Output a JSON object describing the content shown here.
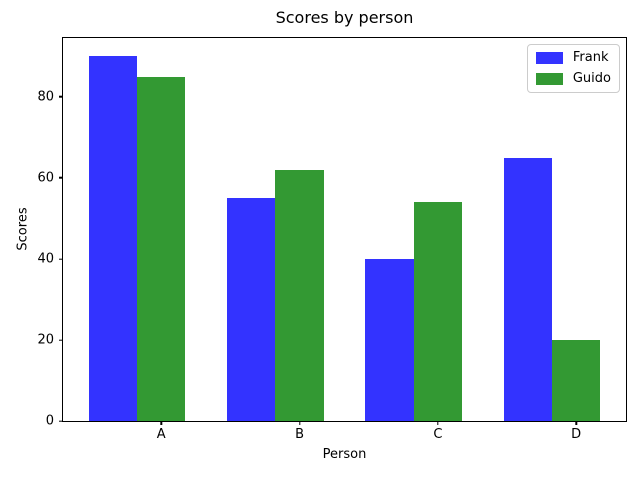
{
  "chart_data": {
    "type": "bar",
    "title": "Scores by person",
    "xlabel": "Person",
    "ylabel": "Scores",
    "categories": [
      "A",
      "B",
      "C",
      "D"
    ],
    "series": [
      {
        "name": "Frank",
        "color": "#3333ff",
        "values": [
          90,
          55,
          40,
          65
        ]
      },
      {
        "name": "Guido",
        "color": "#339933",
        "values": [
          85,
          62,
          54,
          20
        ]
      }
    ],
    "ylim": [
      0,
      94.5
    ],
    "yticks": [
      0,
      20,
      40,
      60,
      80
    ],
    "xlim": [
      -0.36,
      3.71
    ],
    "bar_width": 0.35,
    "group_tick_offset": 0.35,
    "grid": false,
    "legend": {
      "position": "upper right",
      "entries": [
        "Frank",
        "Guido"
      ]
    }
  }
}
